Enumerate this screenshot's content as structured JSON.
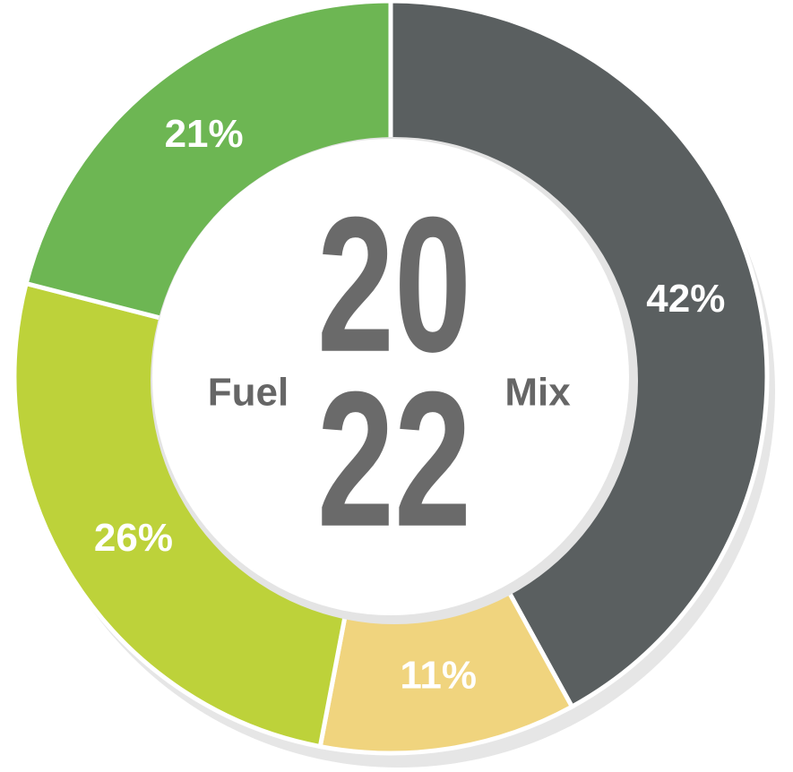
{
  "chart_data": {
    "type": "donut",
    "values": [
      42,
      11,
      26,
      21
    ],
    "value_labels": [
      "42%",
      "11%",
      "26%",
      "21%"
    ],
    "colors": [
      "#5a5f60",
      "#f0d47e",
      "#bdd23a",
      "#6db653"
    ],
    "center_lines": [
      "20",
      "22"
    ],
    "center_left": "Fuel",
    "center_right": "Mix"
  }
}
